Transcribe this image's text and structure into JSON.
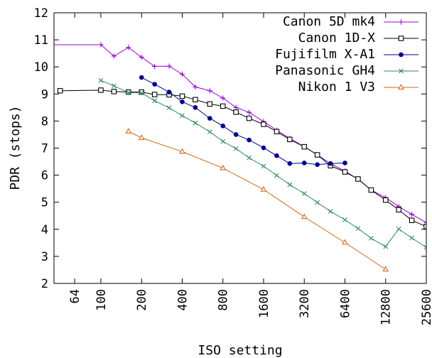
{
  "chart_data": {
    "type": "line",
    "title": "",
    "xlabel": "ISO setting",
    "ylabel": "PDR (stops)",
    "x_scale": "log2",
    "xlim": [
      45,
      25600
    ],
    "ylim": [
      2,
      12
    ],
    "x_ticks": [
      64,
      100,
      200,
      400,
      800,
      1600,
      3200,
      6400,
      12800,
      25600
    ],
    "x_tick_labels": [
      "64",
      "100",
      "200",
      "400",
      "800",
      "1600",
      "3200",
      "6400",
      "12800",
      "25600"
    ],
    "y_ticks": [
      2,
      3,
      4,
      5,
      6,
      7,
      8,
      9,
      10,
      11,
      12
    ],
    "y_tick_labels": [
      "2",
      "3",
      "4",
      "5",
      "6",
      "7",
      "8",
      "9",
      "10",
      "11",
      "12"
    ],
    "grid": false,
    "legend_position": "top-right",
    "series": [
      {
        "name": "Canon 5D mk4",
        "color": "#9400d3",
        "marker": "plus",
        "x": [
          100,
          125,
          160,
          200,
          250,
          320,
          400,
          500,
          640,
          800,
          1000,
          1250,
          1600,
          2000,
          2500,
          3200,
          4000,
          5000,
          6400,
          8000,
          10000,
          12800,
          16000,
          20000,
          25600
        ],
        "y": [
          10.82,
          10.4,
          10.72,
          10.36,
          10.02,
          10.03,
          9.73,
          9.26,
          9.12,
          8.85,
          8.5,
          8.32,
          7.98,
          7.66,
          7.36,
          7.05,
          6.75,
          6.43,
          6.15,
          5.85,
          5.45,
          5.17,
          4.84,
          4.55,
          4.25
        ]
      },
      {
        "name": "Canon 1D-X",
        "color": "#000000",
        "marker": "open-square",
        "x": [
          50,
          100,
          125,
          160,
          200,
          250,
          320,
          400,
          500,
          640,
          800,
          1000,
          1250,
          1600,
          2000,
          2500,
          3200,
          4000,
          5000,
          6400,
          8000,
          10000,
          12800,
          16000,
          20000,
          25600
        ],
        "y": [
          9.12,
          9.14,
          9.09,
          9.07,
          9.07,
          8.98,
          8.97,
          8.92,
          8.79,
          8.63,
          8.55,
          8.33,
          8.1,
          7.88,
          7.61,
          7.32,
          7.05,
          6.75,
          6.35,
          6.12,
          5.86,
          5.45,
          5.08,
          4.72,
          4.33,
          4.1
        ]
      },
      {
        "name": "Fujifilm X-A1",
        "color": "#00008b",
        "marker": "filled-circle",
        "x": [
          200,
          250,
          320,
          400,
          500,
          640,
          800,
          1000,
          1250,
          1600,
          2000,
          2500,
          3200,
          4000,
          5000,
          6400
        ],
        "y": [
          9.61,
          9.36,
          9.07,
          8.71,
          8.5,
          8.1,
          7.82,
          7.5,
          7.3,
          7.01,
          6.72,
          6.43,
          6.45,
          6.39,
          6.43,
          6.45
        ]
      },
      {
        "name": "Panasonic GH4",
        "color": "#2e8b57",
        "marker": "cross",
        "x": [
          100,
          125,
          160,
          200,
          250,
          320,
          400,
          500,
          640,
          800,
          1000,
          1250,
          1600,
          2000,
          2500,
          3200,
          4000,
          5000,
          6400,
          8000,
          10000,
          12800,
          16000,
          20000,
          25600
        ],
        "y": [
          9.5,
          9.3,
          9.05,
          9.04,
          8.75,
          8.49,
          8.2,
          7.93,
          7.6,
          7.25,
          6.98,
          6.64,
          6.33,
          5.99,
          5.65,
          5.32,
          4.99,
          4.66,
          4.35,
          4.03,
          3.67,
          3.36,
          4.01,
          3.68,
          3.33
        ]
      },
      {
        "name": "Nikon 1 V3",
        "color": "#d2691e",
        "marker": "open-triangle",
        "x": [
          160,
          200,
          400,
          800,
          1600,
          3200,
          6400,
          12800
        ],
        "y": [
          7.62,
          7.38,
          6.87,
          6.26,
          5.47,
          4.46,
          3.51,
          2.52
        ]
      }
    ]
  }
}
